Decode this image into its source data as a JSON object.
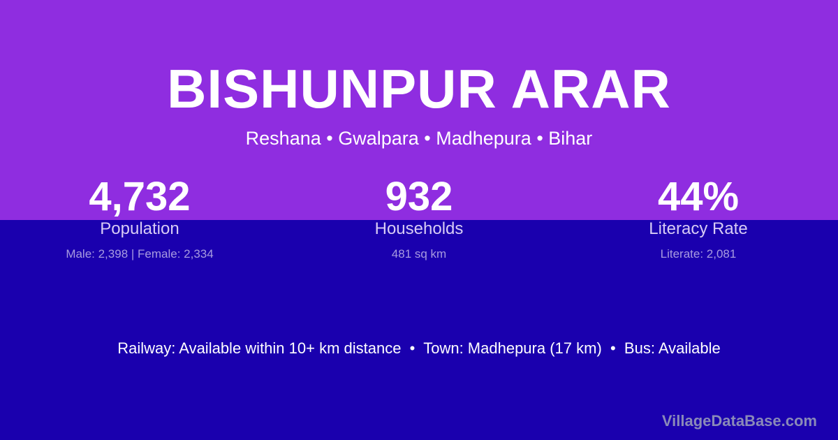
{
  "title": "BISHUNPUR ARAR",
  "subtitle": "Reshana • Gwalpara • Madhepura • Bihar",
  "stats": [
    {
      "value": "4,732",
      "label": "Population",
      "detail": "Male: 2,398 | Female: 2,334"
    },
    {
      "value": "932",
      "label": "Households",
      "detail": "481 sq km"
    },
    {
      "value": "44%",
      "label": "Literacy Rate",
      "detail": "Literate: 2,081"
    }
  ],
  "info": "Railway: Available within 10+ km distance  •  Town: Madhepura (17 km)  •  Bus: Available",
  "brand": "VillageDataBase.com",
  "colors": {
    "top": "#8f2de0",
    "bottom": "#1a00ae"
  }
}
